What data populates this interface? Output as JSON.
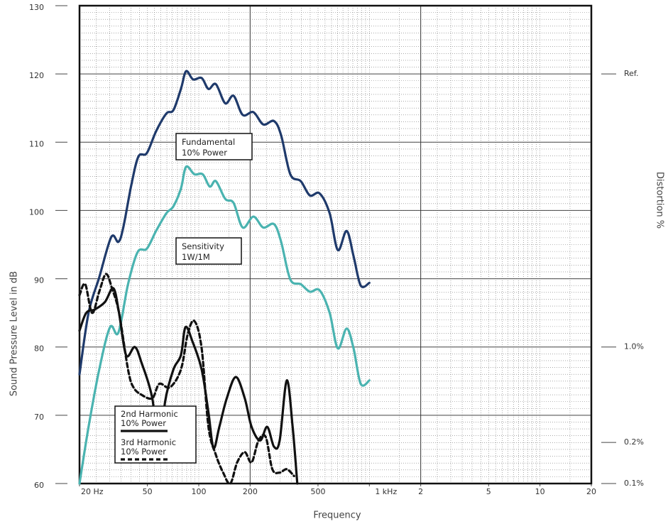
{
  "chart_data": {
    "type": "line",
    "x_label": "Frequency",
    "y_label": "Sound Pressure Level in dB",
    "y2_label": "Distortion %",
    "xscale": "log",
    "xlim": [
      20,
      20000
    ],
    "xticks": [
      {
        "value": 20,
        "label": "20 Hz"
      },
      50,
      100,
      200,
      500,
      {
        "value": 1000,
        "label": "1 kHz"
      },
      {
        "value": 2000,
        "label": "2"
      },
      {
        "value": 5000,
        "label": "5"
      },
      {
        "value": 10000,
        "label": "10"
      },
      {
        "value": 20000,
        "label": "20"
      }
    ],
    "xgrid_major": [
      200,
      2000
    ],
    "ylim": [
      60,
      130
    ],
    "yticks": [
      60,
      70,
      80,
      90,
      100,
      110,
      120,
      130
    ],
    "y2scale": "log",
    "y2lim": [
      0.1,
      316.2
    ],
    "y2ticks": [
      {
        "value": 0.1,
        "label": "0.1%"
      },
      {
        "value": 0.2,
        "label": "0.2%"
      },
      {
        "value": 1,
        "label": "1.0%"
      },
      {
        "value": 100,
        "label": "Ref."
      }
    ],
    "grid": true,
    "series": [
      {
        "name": "Fundamental",
        "sublabel": "10% Power",
        "color": "#1f3a6b",
        "dash": false,
        "x": [
          20,
          22.6,
          26.1,
          30.7,
          33.8,
          36.1,
          40.3,
          44.3,
          49.6,
          56.2,
          64.6,
          71,
          78.6,
          84.3,
          92.6,
          104,
          114,
          126,
          143,
          160,
          181,
          209,
          239,
          276,
          304,
          344,
          396,
          448,
          511,
          585,
          653,
          736,
          808,
          890,
          1000
        ],
        "values": [
          76.0,
          85,
          90.2,
          96.1,
          95.4,
          97.5,
          103.8,
          107.9,
          108.4,
          111.6,
          114.2,
          114.7,
          117.8,
          120.4,
          119.2,
          119.4,
          117.8,
          118.5,
          115.7,
          116.8,
          114.0,
          114.4,
          112.6,
          113.1,
          111,
          105.3,
          104.3,
          102.2,
          102.5,
          99.6,
          94.2,
          97.0,
          93.3,
          89.0,
          89.4
        ]
      },
      {
        "name": "Sensitivity",
        "sublabel": "1W/1M",
        "color": "#4ab3b0",
        "dash": false,
        "x": [
          20,
          22.6,
          26.1,
          30.2,
          33.8,
          38.5,
          43.8,
          49.6,
          56.2,
          64.6,
          71,
          78.6,
          84.3,
          94.3,
          105.5,
          116,
          126,
          143,
          160,
          181,
          209,
          239,
          276,
          304,
          344,
          396,
          448,
          511,
          585,
          653,
          736,
          808,
          890,
          1000
        ],
        "values": [
          60,
          68.3,
          76.7,
          82.9,
          82.1,
          89.2,
          93.9,
          94.4,
          97,
          99.6,
          100.6,
          103.2,
          106.4,
          105.3,
          105.3,
          103.5,
          104.3,
          101.7,
          101.1,
          97.5,
          99.1,
          97.5,
          98.0,
          95.4,
          89.9,
          89.2,
          88.1,
          88.3,
          85,
          79.8,
          82.7,
          79.8,
          74.6,
          75.1
        ]
      },
      {
        "name": "2nd Harmonic",
        "sublabel": "10% Power",
        "color": "#111111",
        "dash": false,
        "x": [
          20,
          21.9,
          24.6,
          28.2,
          31.6,
          34.1,
          37.5,
          42.2,
          46.2,
          53.4,
          58.7,
          63.5,
          71,
          78.6,
          83.6,
          91.9,
          104,
          114,
          122,
          132,
          146,
          165,
          186,
          204,
          229,
          252,
          276,
          298,
          328,
          355,
          378
        ],
        "values": [
          82.4,
          85,
          85.5,
          86.6,
          88.6,
          85,
          78.8,
          80,
          77.7,
          72.5,
          64.2,
          72,
          76.7,
          78.8,
          82.9,
          80.8,
          76.7,
          70.4,
          65.2,
          68.3,
          72.5,
          75.6,
          72.5,
          68.3,
          66.3,
          68.3,
          65.4,
          66.3,
          75.1,
          68.3,
          60
        ]
      },
      {
        "name": "3rd Harmonic",
        "sublabel": "10% Power",
        "color": "#111111",
        "dash": true,
        "x": [
          20,
          21.6,
          23.7,
          26.1,
          28.6,
          31.0,
          34.1,
          38.5,
          41.4,
          46.2,
          53.4,
          58.7,
          67.8,
          78.6,
          86.2,
          94.3,
          104,
          114,
          126,
          139,
          153,
          168,
          186,
          204,
          224,
          247,
          270,
          298,
          328,
          362
        ],
        "values": [
          87.6,
          89.2,
          85,
          88.1,
          90.7,
          88.6,
          85,
          76.7,
          74.1,
          73,
          72.5,
          74.6,
          74.1,
          76.7,
          81.9,
          83.8,
          79.8,
          68.3,
          64.2,
          61.6,
          60,
          63.1,
          64.6,
          63.1,
          66.3,
          66.8,
          62.1,
          61.6,
          62.1,
          61.1
        ]
      }
    ]
  }
}
